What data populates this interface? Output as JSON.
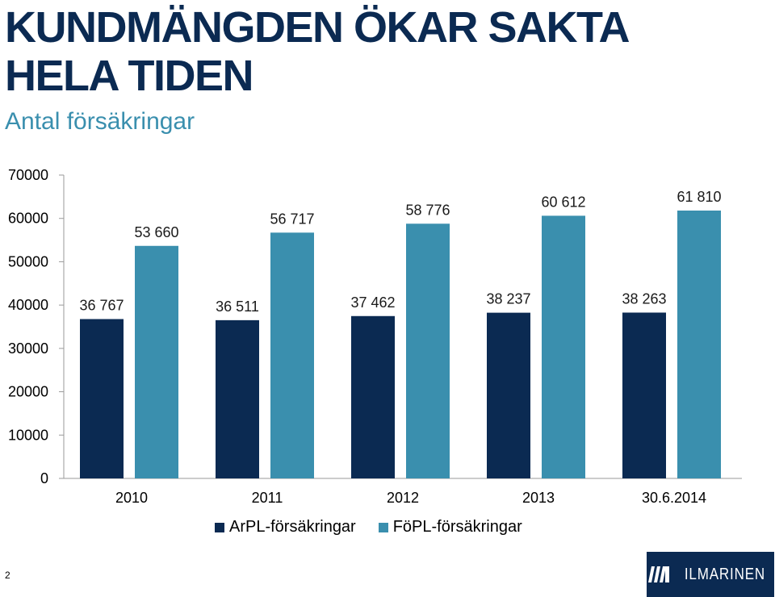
{
  "slide": {
    "title_line1": "KUNDMÄNGDEN ÖKAR SAKTA",
    "title_line2": "HELA TIDEN",
    "subtitle": "Antal försäkringar",
    "page_number": "2",
    "logo_text": "ILMARINEN"
  },
  "colors": {
    "title": "#0b2a52",
    "subtitle": "#3a8fae",
    "arpl": "#0b2a52",
    "fopl": "#3a8fae",
    "logo_bg": "#0b2a52"
  },
  "chart_data": {
    "type": "bar",
    "title": "",
    "xlabel": "",
    "ylabel": "",
    "categories": [
      "2010",
      "2011",
      "2012",
      "2013",
      "30.6.2014"
    ],
    "series": [
      {
        "name": "ArPL-försäkringar",
        "values": [
          36767,
          36511,
          37462,
          38237,
          38263
        ],
        "labels": [
          "36 767",
          "36 511",
          "37 462",
          "38 237",
          "38 263"
        ],
        "color": "#0b2a52"
      },
      {
        "name": "FöPL-försäkringar",
        "values": [
          53660,
          56717,
          58776,
          60612,
          61810
        ],
        "labels": [
          "53 660",
          "56 717",
          "58 776",
          "60 612",
          "61 810"
        ],
        "color": "#3a8fae"
      }
    ],
    "y_ticks": [
      "0",
      "10000",
      "20000",
      "30000",
      "40000",
      "50000",
      "60000",
      "70000"
    ],
    "ylim": [
      0,
      70000
    ],
    "grid": false,
    "legend_position": "bottom"
  }
}
